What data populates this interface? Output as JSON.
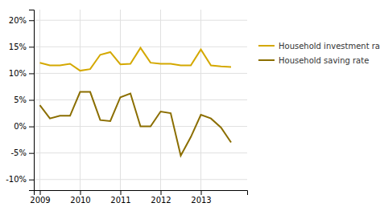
{
  "chart_data": {
    "type": "line",
    "x": [
      2009.0,
      2009.25,
      2009.5,
      2009.75,
      2010.0,
      2010.25,
      2010.5,
      2010.75,
      2011.0,
      2011.25,
      2011.5,
      2011.75,
      2012.0,
      2012.25,
      2012.5,
      2012.75,
      2013.0,
      2013.25,
      2013.5,
      2013.75
    ],
    "series": [
      {
        "name": "Household investment rate",
        "color": "#D4A800",
        "values": [
          12.0,
          11.5,
          11.5,
          11.8,
          10.5,
          10.8,
          13.5,
          14.0,
          11.7,
          11.8,
          14.8,
          12.0,
          11.8,
          11.8,
          11.5,
          11.5,
          14.5,
          11.5,
          11.3,
          11.2
        ]
      },
      {
        "name": "Household saving rate",
        "color": "#8B6E00",
        "values": [
          4.0,
          1.5,
          2.0,
          2.0,
          6.5,
          6.5,
          1.2,
          1.0,
          5.5,
          6.2,
          0.0,
          0.0,
          2.8,
          2.5,
          -5.5,
          -2.0,
          2.2,
          1.5,
          -0.2,
          -3.0
        ]
      }
    ],
    "xlim": [
      2008.85,
      2014.15
    ],
    "xticks": [
      2009,
      2010,
      2011,
      2012,
      2013
    ],
    "ylim": [
      -12,
      22
    ],
    "yticks": [
      {
        "value": -10,
        "label": "-10%"
      },
      {
        "value": -5,
        "label": "-5%"
      },
      {
        "value": 0,
        "label": "0%"
      },
      {
        "value": 5,
        "label": "5%"
      },
      {
        "value": 10,
        "label": "10%"
      },
      {
        "value": 15,
        "label": "15%"
      },
      {
        "value": 20,
        "label": "20%"
      }
    ],
    "grid": true,
    "legend": "right"
  }
}
